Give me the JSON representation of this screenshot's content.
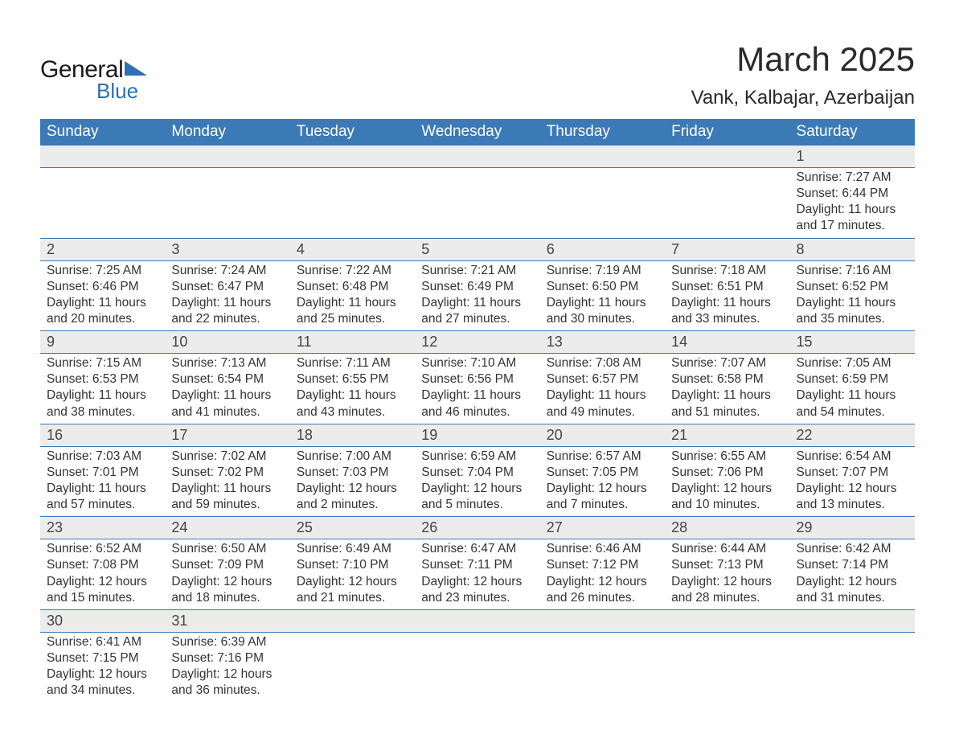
{
  "brand": {
    "general": "General",
    "blue": "Blue"
  },
  "title": "March 2025",
  "location": "Vank, Kalbajar, Azerbaijan",
  "colors": {
    "header_bg": "#3b79b7",
    "header_text": "#ffffff",
    "rule": "#3b79b7",
    "daynum_bg": "#ececec",
    "text": "#333333",
    "logo_accent": "#2e6fb5",
    "background": "#ffffff"
  },
  "typography": {
    "title_fontsize": 42,
    "location_fontsize": 24,
    "dayheader_fontsize": 19,
    "daynum_fontsize": 18,
    "body_fontsize": 15.5,
    "font_family": "Arial"
  },
  "day_headers": [
    "Sunday",
    "Monday",
    "Tuesday",
    "Wednesday",
    "Thursday",
    "Friday",
    "Saturday"
  ],
  "weeks": [
    [
      null,
      null,
      null,
      null,
      null,
      null,
      {
        "n": "1",
        "sr": "Sunrise: 7:27 AM",
        "ss": "Sunset: 6:44 PM",
        "d1": "Daylight: 11 hours",
        "d2": "and 17 minutes."
      }
    ],
    [
      {
        "n": "2",
        "sr": "Sunrise: 7:25 AM",
        "ss": "Sunset: 6:46 PM",
        "d1": "Daylight: 11 hours",
        "d2": "and 20 minutes."
      },
      {
        "n": "3",
        "sr": "Sunrise: 7:24 AM",
        "ss": "Sunset: 6:47 PM",
        "d1": "Daylight: 11 hours",
        "d2": "and 22 minutes."
      },
      {
        "n": "4",
        "sr": "Sunrise: 7:22 AM",
        "ss": "Sunset: 6:48 PM",
        "d1": "Daylight: 11 hours",
        "d2": "and 25 minutes."
      },
      {
        "n": "5",
        "sr": "Sunrise: 7:21 AM",
        "ss": "Sunset: 6:49 PM",
        "d1": "Daylight: 11 hours",
        "d2": "and 27 minutes."
      },
      {
        "n": "6",
        "sr": "Sunrise: 7:19 AM",
        "ss": "Sunset: 6:50 PM",
        "d1": "Daylight: 11 hours",
        "d2": "and 30 minutes."
      },
      {
        "n": "7",
        "sr": "Sunrise: 7:18 AM",
        "ss": "Sunset: 6:51 PM",
        "d1": "Daylight: 11 hours",
        "d2": "and 33 minutes."
      },
      {
        "n": "8",
        "sr": "Sunrise: 7:16 AM",
        "ss": "Sunset: 6:52 PM",
        "d1": "Daylight: 11 hours",
        "d2": "and 35 minutes."
      }
    ],
    [
      {
        "n": "9",
        "sr": "Sunrise: 7:15 AM",
        "ss": "Sunset: 6:53 PM",
        "d1": "Daylight: 11 hours",
        "d2": "and 38 minutes."
      },
      {
        "n": "10",
        "sr": "Sunrise: 7:13 AM",
        "ss": "Sunset: 6:54 PM",
        "d1": "Daylight: 11 hours",
        "d2": "and 41 minutes."
      },
      {
        "n": "11",
        "sr": "Sunrise: 7:11 AM",
        "ss": "Sunset: 6:55 PM",
        "d1": "Daylight: 11 hours",
        "d2": "and 43 minutes."
      },
      {
        "n": "12",
        "sr": "Sunrise: 7:10 AM",
        "ss": "Sunset: 6:56 PM",
        "d1": "Daylight: 11 hours",
        "d2": "and 46 minutes."
      },
      {
        "n": "13",
        "sr": "Sunrise: 7:08 AM",
        "ss": "Sunset: 6:57 PM",
        "d1": "Daylight: 11 hours",
        "d2": "and 49 minutes."
      },
      {
        "n": "14",
        "sr": "Sunrise: 7:07 AM",
        "ss": "Sunset: 6:58 PM",
        "d1": "Daylight: 11 hours",
        "d2": "and 51 minutes."
      },
      {
        "n": "15",
        "sr": "Sunrise: 7:05 AM",
        "ss": "Sunset: 6:59 PM",
        "d1": "Daylight: 11 hours",
        "d2": "and 54 minutes."
      }
    ],
    [
      {
        "n": "16",
        "sr": "Sunrise: 7:03 AM",
        "ss": "Sunset: 7:01 PM",
        "d1": "Daylight: 11 hours",
        "d2": "and 57 minutes."
      },
      {
        "n": "17",
        "sr": "Sunrise: 7:02 AM",
        "ss": "Sunset: 7:02 PM",
        "d1": "Daylight: 11 hours",
        "d2": "and 59 minutes."
      },
      {
        "n": "18",
        "sr": "Sunrise: 7:00 AM",
        "ss": "Sunset: 7:03 PM",
        "d1": "Daylight: 12 hours",
        "d2": "and 2 minutes."
      },
      {
        "n": "19",
        "sr": "Sunrise: 6:59 AM",
        "ss": "Sunset: 7:04 PM",
        "d1": "Daylight: 12 hours",
        "d2": "and 5 minutes."
      },
      {
        "n": "20",
        "sr": "Sunrise: 6:57 AM",
        "ss": "Sunset: 7:05 PM",
        "d1": "Daylight: 12 hours",
        "d2": "and 7 minutes."
      },
      {
        "n": "21",
        "sr": "Sunrise: 6:55 AM",
        "ss": "Sunset: 7:06 PM",
        "d1": "Daylight: 12 hours",
        "d2": "and 10 minutes."
      },
      {
        "n": "22",
        "sr": "Sunrise: 6:54 AM",
        "ss": "Sunset: 7:07 PM",
        "d1": "Daylight: 12 hours",
        "d2": "and 13 minutes."
      }
    ],
    [
      {
        "n": "23",
        "sr": "Sunrise: 6:52 AM",
        "ss": "Sunset: 7:08 PM",
        "d1": "Daylight: 12 hours",
        "d2": "and 15 minutes."
      },
      {
        "n": "24",
        "sr": "Sunrise: 6:50 AM",
        "ss": "Sunset: 7:09 PM",
        "d1": "Daylight: 12 hours",
        "d2": "and 18 minutes."
      },
      {
        "n": "25",
        "sr": "Sunrise: 6:49 AM",
        "ss": "Sunset: 7:10 PM",
        "d1": "Daylight: 12 hours",
        "d2": "and 21 minutes."
      },
      {
        "n": "26",
        "sr": "Sunrise: 6:47 AM",
        "ss": "Sunset: 7:11 PM",
        "d1": "Daylight: 12 hours",
        "d2": "and 23 minutes."
      },
      {
        "n": "27",
        "sr": "Sunrise: 6:46 AM",
        "ss": "Sunset: 7:12 PM",
        "d1": "Daylight: 12 hours",
        "d2": "and 26 minutes."
      },
      {
        "n": "28",
        "sr": "Sunrise: 6:44 AM",
        "ss": "Sunset: 7:13 PM",
        "d1": "Daylight: 12 hours",
        "d2": "and 28 minutes."
      },
      {
        "n": "29",
        "sr": "Sunrise: 6:42 AM",
        "ss": "Sunset: 7:14 PM",
        "d1": "Daylight: 12 hours",
        "d2": "and 31 minutes."
      }
    ],
    [
      {
        "n": "30",
        "sr": "Sunrise: 6:41 AM",
        "ss": "Sunset: 7:15 PM",
        "d1": "Daylight: 12 hours",
        "d2": "and 34 minutes."
      },
      {
        "n": "31",
        "sr": "Sunrise: 6:39 AM",
        "ss": "Sunset: 7:16 PM",
        "d1": "Daylight: 12 hours",
        "d2": "and 36 minutes."
      },
      null,
      null,
      null,
      null,
      null
    ]
  ]
}
